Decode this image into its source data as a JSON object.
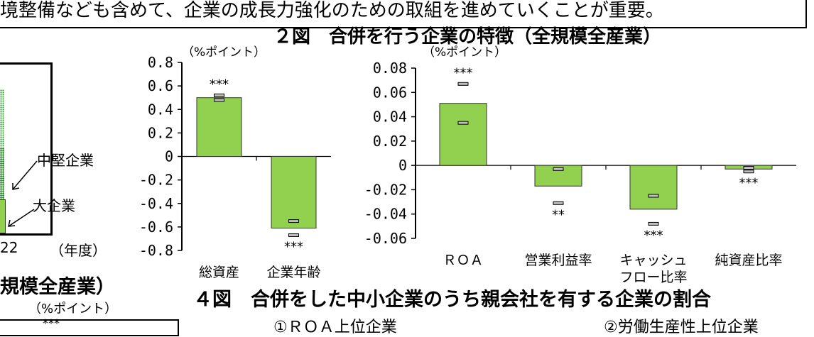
{
  "header": {
    "line": "境整備なども含めて、企業の成長力強化のための取組を進めていくことが重要。"
  },
  "figure2": {
    "title": "２図　合併を行う企業の特徴（全規模全産業）"
  },
  "figure4": {
    "title": "４図　合併をした中小企業のうち親会社を有する企業の割合",
    "left_sub": "①ＲＯＡ上位企業",
    "right_sub": "②労働生産性上位企業"
  },
  "left_fragment": {
    "label_mid": "中堅企業",
    "label_large": "大企業",
    "year_tick": "22",
    "year_unit": "（年度）",
    "lower_title": "規模全産業）",
    "lower_unit": "（%ポイント）",
    "lower_sig": "***"
  },
  "chart_data": [
    {
      "type": "bar",
      "unit_label": "（%ポイント）",
      "categories": [
        "総資産",
        "企業年齢"
      ],
      "values": [
        0.5,
        -0.61
      ],
      "ci_upper": [
        0.52,
        -0.55
      ],
      "ci_lower": [
        0.48,
        -0.67
      ],
      "significance": [
        "***",
        "***"
      ],
      "ylim": [
        -0.8,
        0.8
      ],
      "yticks": [
        "0.8",
        "0.6",
        "0.4",
        "0.2",
        "0",
        "-0.2",
        "-0.4",
        "-0.6",
        "-0.8"
      ],
      "bar_color": "#92d050"
    },
    {
      "type": "bar",
      "unit_label": "（%ポイント）",
      "categories": [
        "ＲＯＡ",
        "営業利益率",
        "キャッシュ\nフロー比率",
        "純資産比率"
      ],
      "values": [
        0.051,
        -0.017,
        -0.036,
        -0.003
      ],
      "ci_upper": [
        0.067,
        -0.003,
        -0.025,
        -0.002
      ],
      "ci_lower": [
        0.035,
        -0.031,
        -0.048,
        -0.005
      ],
      "significance": [
        "***",
        "**",
        "***",
        "***"
      ],
      "ylim": [
        -0.06,
        0.08
      ],
      "yticks": [
        "0.08",
        "0.06",
        "0.04",
        "0.02",
        "0",
        "-0.02",
        "-0.04",
        "-0.06"
      ],
      "bar_color": "#92d050"
    }
  ]
}
